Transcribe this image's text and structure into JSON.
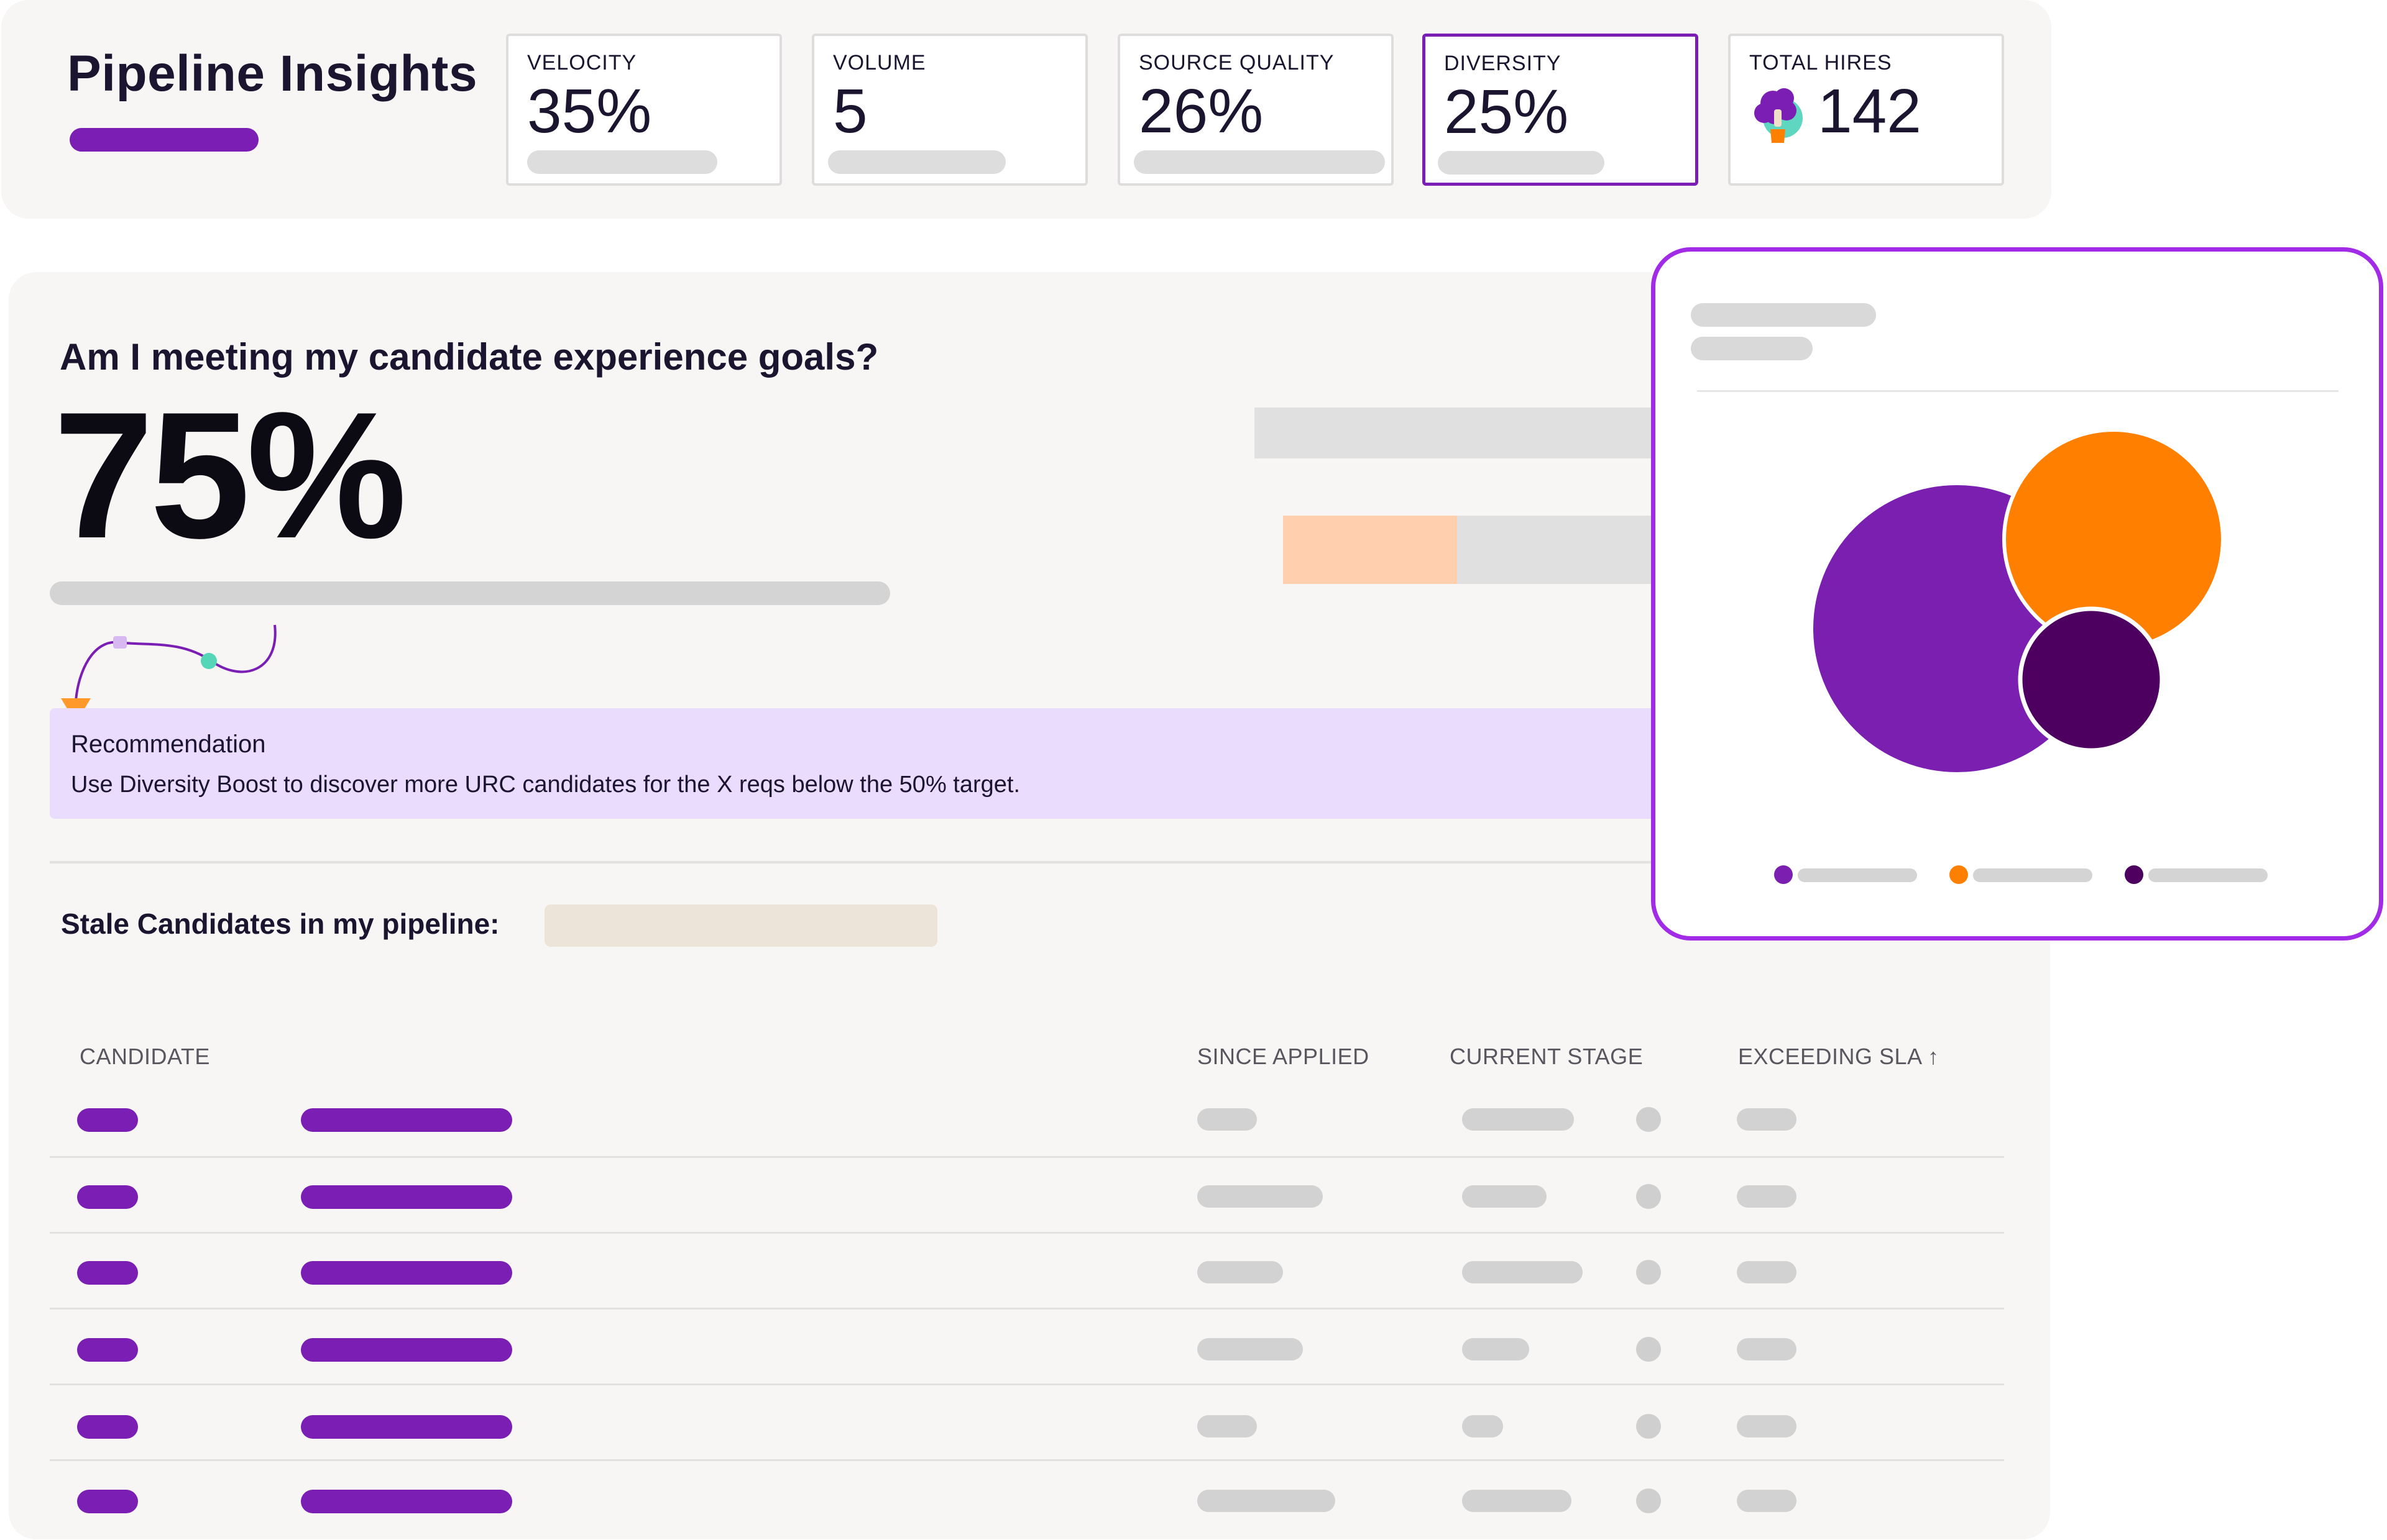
{
  "header": {
    "title": "Pipeline Insights",
    "accent_color": "#7b1fb4"
  },
  "kpis": [
    {
      "label": "VELOCITY",
      "value": "35%"
    },
    {
      "label": "VOLUME",
      "value": "5"
    },
    {
      "label": "SOURCE QUALITY",
      "value": "26%"
    },
    {
      "label": "DIVERSITY",
      "value": "25%",
      "selected": true
    },
    {
      "label": "TOTAL HIRES",
      "value": "142",
      "icon": "avatar-icon"
    }
  ],
  "main": {
    "question": "Am I meeting my candidate experience goals?",
    "big_value": "75%",
    "recommendation": {
      "title": "Recommendation",
      "text": "Use Diversity Boost to discover more URC candidates for the X reqs below the 50% target."
    },
    "stale_label": "Stale Candidates in my pipeline:"
  },
  "table": {
    "columns": [
      "CANDIDATE",
      "SINCE APPLIED",
      "CURRENT STAGE",
      "EXCEEDING SLA ↑"
    ],
    "row_count": 6
  },
  "chart": {
    "colors": {
      "purple": "#7a1fb0",
      "orange": "#ff8000",
      "dark_purple": "#4d0060"
    },
    "legend_icons": [
      "purple-dot-icon",
      "orange-dot-icon",
      "dark-purple-dot-icon"
    ]
  }
}
